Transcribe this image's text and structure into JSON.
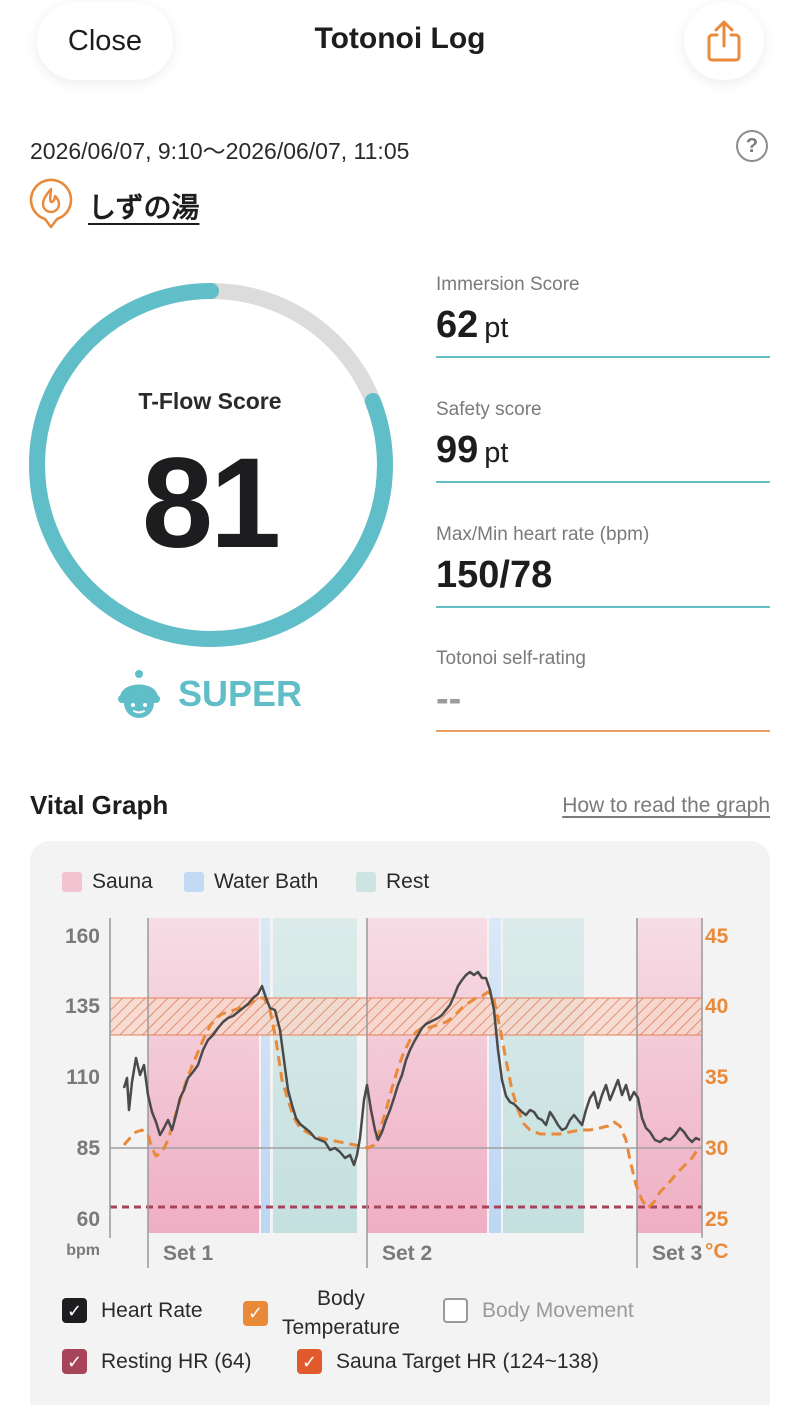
{
  "header": {
    "close_label": "Close",
    "title": "Totonoi Log",
    "share_icon": "share-icon"
  },
  "session": {
    "datetime": "2026/06/07, 9:10～2026/06/07, 11:05",
    "help_glyph": "?",
    "facility": "しずの湯"
  },
  "score": {
    "label": "T-Flow Score",
    "value": "81",
    "progress_fraction": 0.81,
    "rank": "SUPER",
    "ring_color": "#5fbec7",
    "track_color": "#dcdcdc"
  },
  "metrics": [
    {
      "label": "Immersion Score",
      "value": "62",
      "unit": "pt"
    },
    {
      "label": "Safety score",
      "value": "99",
      "unit": "pt"
    },
    {
      "label": "Max/Min heart rate (bpm)",
      "value": "150/78",
      "unit": ""
    },
    {
      "label": "Totonoi self-rating",
      "value": "--",
      "unit": ""
    }
  ],
  "vital": {
    "title": "Vital Graph",
    "howto_link": "How to read the graph"
  },
  "graph_legend": {
    "sauna": "Sauna",
    "water": "Water Bath",
    "rest": "Rest"
  },
  "graph_axes": {
    "left_ticks": [
      "160",
      "135",
      "110",
      "85",
      "60"
    ],
    "left_unit": "bpm",
    "right_ticks": [
      "45",
      "40",
      "35",
      "30",
      "25"
    ],
    "right_unit": "°C",
    "sets": [
      "Set 1",
      "Set 2",
      "Set 3"
    ]
  },
  "checkboxes": {
    "heart_rate": "Heart Rate",
    "body_temp_line1": "Body",
    "body_temp_line2": "Temperature",
    "body_movement": "Body Movement",
    "resting_hr": "Resting HR (64)",
    "sauna_target": "Sauna Target HR (124~138)"
  },
  "colors": {
    "accent_teal": "#5fbec7",
    "accent_orange": "#e88a3a",
    "sauna_pink": "#eeb3c4",
    "water_blue": "#c3daf4",
    "rest_teal": "#c9e3e2",
    "resting_hr": "#a8445a",
    "target_hr": "#e05a2b"
  }
}
